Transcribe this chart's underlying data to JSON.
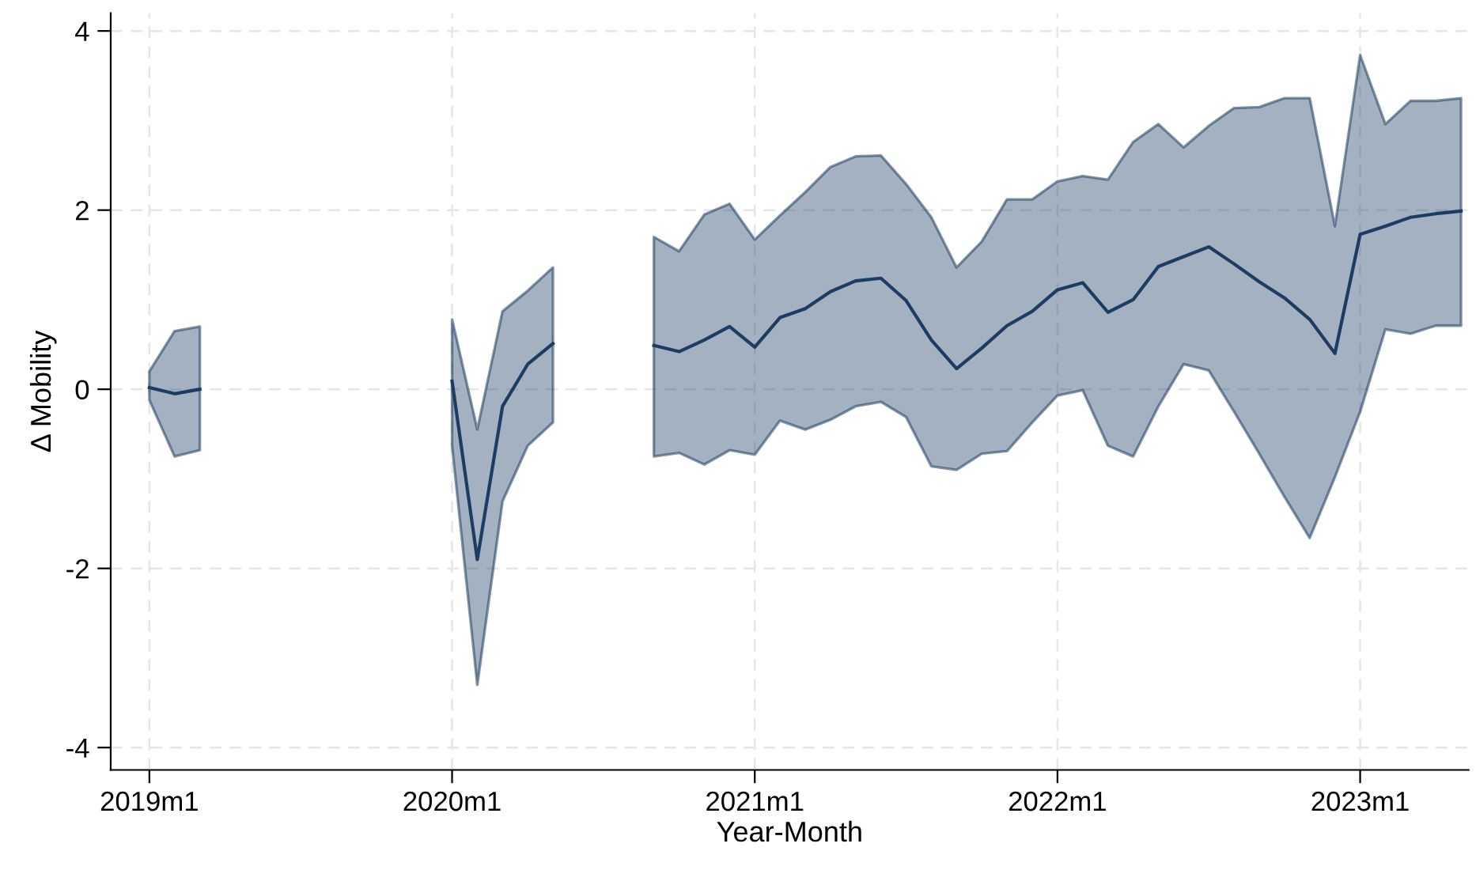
{
  "chart_data": {
    "type": "line",
    "xlabel": "Year-Month",
    "ylabel": "Δ Mobility",
    "x": [
      "2019-01",
      "2019-02",
      "2019-03",
      "2019-04",
      "2019-05",
      "2019-06",
      "2019-07",
      "2019-08",
      "2019-09",
      "2019-10",
      "2019-11",
      "2019-12",
      "2020-01",
      "2020-02",
      "2020-03",
      "2020-04",
      "2020-05",
      "2020-06",
      "2020-07",
      "2020-08",
      "2020-09",
      "2020-10",
      "2020-11",
      "2020-12",
      "2021-01",
      "2021-02",
      "2021-03",
      "2021-04",
      "2021-05",
      "2021-06",
      "2021-07",
      "2021-08",
      "2021-09",
      "2021-10",
      "2021-11",
      "2021-12",
      "2022-01",
      "2022-02",
      "2022-03",
      "2022-04",
      "2022-05",
      "2022-06",
      "2022-07",
      "2022-08",
      "2022-09",
      "2022-10",
      "2022-11",
      "2022-12",
      "2023-01",
      "2023-02",
      "2023-03",
      "2023-04",
      "2023-05"
    ],
    "series": [
      {
        "color": "#1b3d63",
        "values": [
          0.02,
          -0.05,
          0.0,
          null,
          null,
          null,
          null,
          null,
          null,
          null,
          null,
          null,
          0.09,
          -1.9,
          -0.19,
          0.28,
          0.51,
          null,
          null,
          null,
          0.49,
          0.42,
          0.55,
          0.7,
          0.47,
          0.8,
          0.9,
          1.09,
          1.21,
          1.24,
          0.99,
          0.55,
          0.23,
          0.46,
          0.71,
          0.87,
          1.11,
          1.19,
          0.86,
          1.0,
          1.37,
          1.48,
          1.59,
          1.4,
          1.2,
          1.02,
          0.78,
          0.4,
          1.73,
          1.82,
          1.92,
          1.96,
          1.99
        ],
        "upper": [
          0.2,
          0.65,
          0.7,
          null,
          null,
          null,
          null,
          null,
          null,
          null,
          null,
          null,
          0.78,
          -0.45,
          0.87,
          1.1,
          1.36,
          null,
          null,
          null,
          1.7,
          1.54,
          1.95,
          2.07,
          1.67,
          1.94,
          2.2,
          2.48,
          2.6,
          2.61,
          2.29,
          1.92,
          1.36,
          1.65,
          2.12,
          2.12,
          2.32,
          2.38,
          2.34,
          2.76,
          2.96,
          2.7,
          2.94,
          3.14,
          3.15,
          3.25,
          3.25,
          1.82,
          3.73,
          2.96,
          3.22,
          3.22,
          3.25
        ],
        "lower": [
          -0.12,
          -0.75,
          -0.68,
          null,
          null,
          null,
          null,
          null,
          null,
          null,
          null,
          null,
          -0.63,
          -3.3,
          -1.25,
          -0.63,
          -0.37,
          null,
          null,
          null,
          -0.75,
          -0.71,
          -0.84,
          -0.68,
          -0.73,
          -0.35,
          -0.45,
          -0.34,
          -0.19,
          -0.14,
          -0.31,
          -0.86,
          -0.9,
          -0.72,
          -0.69,
          -0.37,
          -0.07,
          -0.01,
          -0.63,
          -0.75,
          -0.19,
          0.28,
          0.21,
          -0.25,
          -0.72,
          -1.2,
          -1.66,
          -0.98,
          -0.25,
          0.67,
          0.62,
          0.71,
          0.71
        ]
      }
    ],
    "xlim": [
      "2018-11-15",
      "2023-05-10"
    ],
    "xticks": [
      {
        "value": "2019-01",
        "label": "2019m1"
      },
      {
        "value": "2020-01",
        "label": "2020m1"
      },
      {
        "value": "2021-01",
        "label": "2021m1"
      },
      {
        "value": "2022-01",
        "label": "2022m1"
      },
      {
        "value": "2023-01",
        "label": "2023m1"
      }
    ],
    "ylim": [
      -4.25,
      4.2
    ],
    "yticks": [
      -4,
      -2,
      0,
      2,
      4
    ],
    "grid": true,
    "marker": "none",
    "line_style": "solid"
  }
}
